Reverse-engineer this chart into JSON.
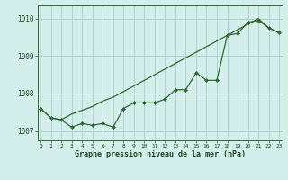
{
  "x": [
    0,
    1,
    2,
    3,
    4,
    5,
    6,
    7,
    8,
    9,
    10,
    11,
    12,
    13,
    14,
    15,
    16,
    17,
    18,
    19,
    20,
    21,
    22,
    23
  ],
  "y_line": [
    1007.6,
    1007.35,
    1007.3,
    1007.45,
    1007.55,
    1007.65,
    1007.8,
    1007.9,
    1008.05,
    1008.2,
    1008.35,
    1008.5,
    1008.65,
    1008.8,
    1008.95,
    1009.1,
    1009.25,
    1009.4,
    1009.55,
    1009.7,
    1009.85,
    1010.0,
    1009.75,
    1009.62
  ],
  "y_markers": [
    1007.6,
    1007.35,
    1007.3,
    1007.1,
    1007.2,
    1007.15,
    1007.2,
    1007.1,
    1007.6,
    1007.75,
    1007.75,
    1007.75,
    1007.85,
    1008.1,
    1008.1,
    1008.55,
    1008.35,
    1008.35,
    1009.55,
    1009.6,
    1009.9,
    1009.95,
    1009.75,
    1009.62
  ],
  "bg_color": "#d4eeeb",
  "line_color": "#2d6a2d",
  "marker_color": "#2d6a2d",
  "grid_color": "#aacfcb",
  "xlabel": "Graphe pression niveau de la mer (hPa)",
  "ylim": [
    1006.75,
    1010.35
  ],
  "yticks": [
    1007,
    1008,
    1009,
    1010
  ],
  "xticks": [
    0,
    1,
    2,
    3,
    4,
    5,
    6,
    7,
    8,
    9,
    10,
    11,
    12,
    13,
    14,
    15,
    16,
    17,
    18,
    19,
    20,
    21,
    22,
    23
  ]
}
